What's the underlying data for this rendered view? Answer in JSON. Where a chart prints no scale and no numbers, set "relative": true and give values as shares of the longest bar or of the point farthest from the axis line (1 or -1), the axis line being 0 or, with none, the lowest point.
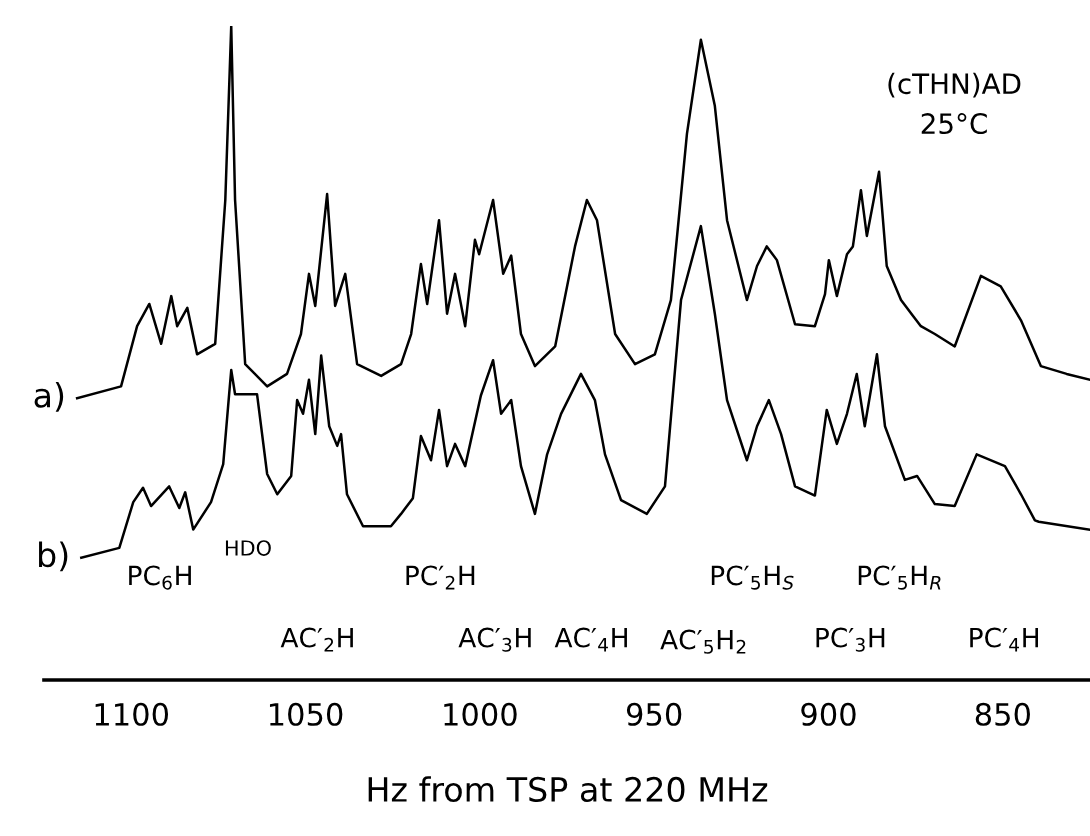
{
  "chart_data": {
    "type": "line",
    "relative": true,
    "xlabel": "Hz from TSP at 220 MHz",
    "xlim": [
      1125,
      825
    ],
    "xticks": [
      1100,
      1050,
      1000,
      950,
      900,
      850
    ],
    "grid": false,
    "legend": false,
    "marker": "none",
    "line_style": "solid",
    "series": [
      {
        "name": "a)",
        "color": "#000000",
        "x": [
          1115.5,
          1102.9,
          1098.3,
          1094.8,
          1091.4,
          1088.5,
          1086.8,
          1083.9,
          1081.1,
          1075.9,
          1073.0,
          1071.3,
          1070.2,
          1067.3,
          1061.0,
          1055.3,
          1051.3,
          1049.0,
          1047.2,
          1043.8,
          1041.5,
          1038.6,
          1035.2,
          1028.3,
          1022.6,
          1019.7,
          1016.9,
          1015.1,
          1011.7,
          1009.4,
          1007.1,
          1004.2,
          1001.4,
          1000.2,
          996.2,
          993.3,
          991.0,
          988.2,
          984.2,
          978.4,
          972.7,
          969.3,
          966.4,
          961.2,
          955.5,
          949.8,
          945.2,
          940.6,
          936.6,
          932.6,
          929.1,
          923.4,
          920.5,
          917.7,
          914.8,
          909.6,
          903.9,
          901.0,
          899.9,
          897.6,
          894.7,
          893.0,
          890.7,
          889.0,
          885.5,
          883.3,
          879.2,
          875.8,
          873.5,
          869.5,
          863.8,
          856.3,
          850.6,
          844.8,
          839.1,
          831.7,
          825.0
        ],
        "values": [
          0.431,
          0.449,
          0.541,
          0.575,
          0.514,
          0.587,
          0.541,
          0.569,
          0.498,
          0.514,
          0.734,
          1.0,
          0.734,
          0.483,
          0.449,
          0.468,
          0.529,
          0.621,
          0.572,
          0.743,
          0.572,
          0.621,
          0.483,
          0.465,
          0.483,
          0.529,
          0.636,
          0.575,
          0.703,
          0.56,
          0.621,
          0.541,
          0.673,
          0.651,
          0.734,
          0.621,
          0.649,
          0.529,
          0.48,
          0.51,
          0.663,
          0.734,
          0.703,
          0.529,
          0.483,
          0.498,
          0.581,
          0.835,
          0.979,
          0.878,
          0.703,
          0.581,
          0.633,
          0.663,
          0.642,
          0.544,
          0.541,
          0.59,
          0.642,
          0.587,
          0.651,
          0.663,
          0.749,
          0.679,
          0.777,
          0.633,
          0.581,
          0.557,
          0.541,
          0.529,
          0.51,
          0.618,
          0.602,
          0.55,
          0.48,
          0.468,
          0.459
        ]
      },
      {
        "name": "b)",
        "color": "#000000",
        "x": [
          1114.3,
          1103.4,
          1099.4,
          1096.6,
          1094.3,
          1089.1,
          1086.2,
          1084.5,
          1082.2,
          1077.1,
          1073.6,
          1071.9,
          1071.3,
          1070.2,
          1063.9,
          1061.0,
          1058.1,
          1054.1,
          1052.4,
          1050.7,
          1049.0,
          1047.2,
          1045.5,
          1043.2,
          1040.9,
          1039.8,
          1038.1,
          1033.5,
          1025.5,
          1022.6,
          1019.2,
          1016.9,
          1014.0,
          1011.7,
          1009.4,
          1007.1,
          1004.2,
          999.7,
          996.2,
          993.9,
          991.0,
          988.2,
          984.2,
          980.7,
          976.7,
          971.0,
          967.0,
          964.1,
          959.5,
          952.1,
          946.9,
          942.3,
          936.6,
          932.6,
          929.1,
          923.4,
          920.5,
          917.1,
          913.6,
          909.6,
          903.9,
          900.5,
          897.6,
          894.7,
          891.9,
          889.6,
          886.1,
          883.8,
          878.1,
          874.6,
          869.5,
          863.8,
          857.5,
          849.4,
          844.8,
          840.8,
          839.7,
          825.3
        ],
        "values": [
          0.187,
          0.202,
          0.272,
          0.294,
          0.266,
          0.296,
          0.263,
          0.287,
          0.23,
          0.272,
          0.33,
          0.437,
          0.474,
          0.437,
          0.437,
          0.315,
          0.284,
          0.312,
          0.428,
          0.407,
          0.459,
          0.376,
          0.496,
          0.388,
          0.358,
          0.376,
          0.284,
          0.235,
          0.235,
          0.254,
          0.278,
          0.373,
          0.336,
          0.413,
          0.327,
          0.361,
          0.327,
          0.435,
          0.489,
          0.407,
          0.428,
          0.327,
          0.254,
          0.345,
          0.407,
          0.468,
          0.428,
          0.345,
          0.275,
          0.254,
          0.296,
          0.581,
          0.694,
          0.56,
          0.428,
          0.336,
          0.388,
          0.428,
          0.376,
          0.296,
          0.282,
          0.413,
          0.361,
          0.407,
          0.468,
          0.388,
          0.498,
          0.388,
          0.306,
          0.312,
          0.269,
          0.266,
          0.345,
          0.327,
          0.284,
          0.244,
          0.242,
          0.23
        ]
      }
    ],
    "annotations": [
      "(cTHN)AD",
      "25°C",
      "PC$_{6}$H",
      "HDO",
      "PC′$_{2}$H",
      "PC′$_{5}$H$_{S}$",
      "PC′$_{5}$H$_{R}$",
      "AC′$_{2}$H",
      "AC′$_{3}$H",
      "AC′$_{4}$H",
      "AC′$_{5}$H$_{2}$",
      "PC′$_{3}$H",
      "PC′$_{4}$H"
    ]
  }
}
